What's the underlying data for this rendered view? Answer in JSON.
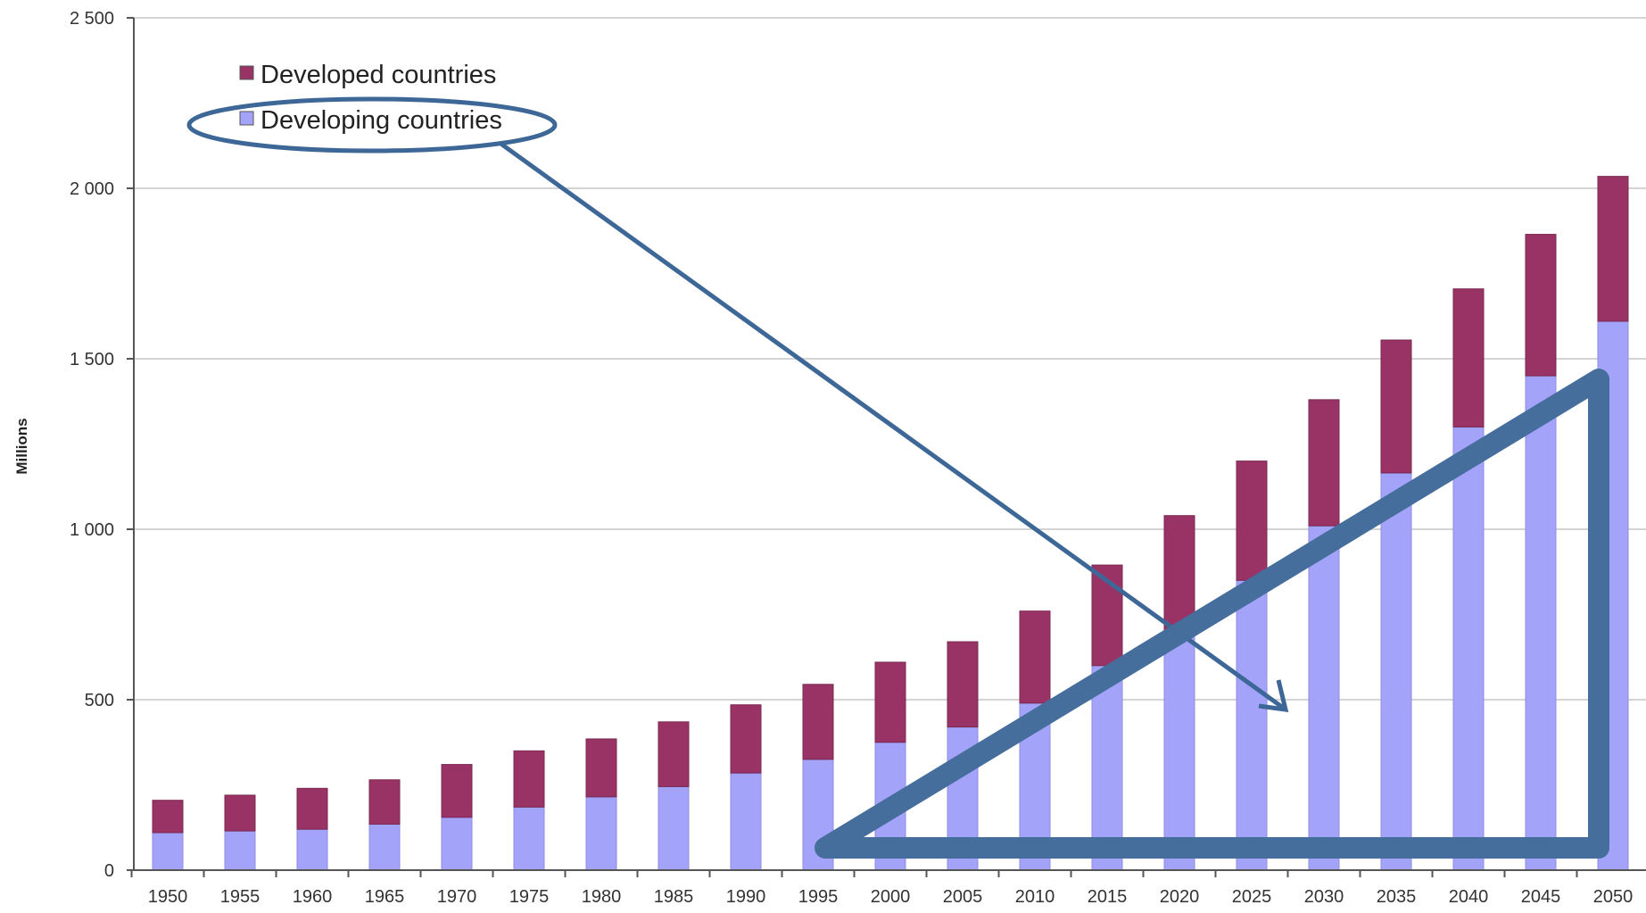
{
  "chart_data": {
    "type": "bar",
    "stacked": true,
    "ylabel": "Millions",
    "ylim": [
      0,
      2500
    ],
    "yticks": [
      "0",
      "500",
      "1 000",
      "1 500",
      "2 000",
      "2 500"
    ],
    "ytick_values": [
      0,
      500,
      1000,
      1500,
      2000,
      2500
    ],
    "grid": true,
    "legend_position": "top-left",
    "categories": [
      "1950",
      "1955",
      "1960",
      "1965",
      "1970",
      "1975",
      "1980",
      "1985",
      "1990",
      "1995",
      "2000",
      "2005",
      "2010",
      "2015",
      "2020",
      "2025",
      "2030",
      "2035",
      "2040",
      "2045",
      "2050"
    ],
    "series": [
      {
        "name": "Developing countries",
        "color": "#a3a3fa",
        "values": [
          110,
          115,
          120,
          135,
          155,
          185,
          215,
          245,
          285,
          325,
          375,
          420,
          490,
          600,
          700,
          850,
          1010,
          1165,
          1300,
          1450,
          1610
        ]
      },
      {
        "name": "Developed countries",
        "color": "#993366",
        "values": [
          95,
          105,
          120,
          130,
          155,
          165,
          170,
          190,
          200,
          220,
          235,
          250,
          270,
          295,
          340,
          350,
          370,
          390,
          405,
          415,
          425
        ]
      }
    ],
    "annotations": {
      "color": "#3d6796",
      "highlight_ellipse_target": "Developing countries",
      "arrow_to_category": "2025",
      "triangle_from_category": "1995",
      "triangle_to_category": "2050"
    }
  }
}
